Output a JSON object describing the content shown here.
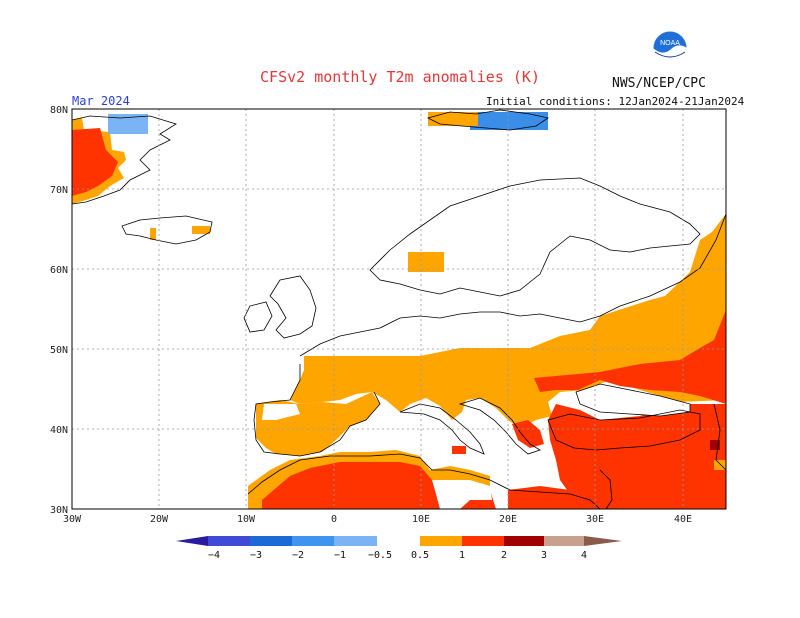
{
  "header": {
    "title": "CFSv2 monthly T2m anomalies (K)",
    "agency": "NWS/NCEP/CPC",
    "month": "Mar 2024",
    "initial_conditions": "Initial conditions: 12Jan2024-21Jan2024",
    "logo_text": "NOAA"
  },
  "map": {
    "lat_labels": [
      "80N",
      "70N",
      "60N",
      "50N",
      "40N",
      "30N"
    ],
    "lon_labels": [
      "30W",
      "20W",
      "10W",
      "0",
      "10E",
      "20E",
      "30E",
      "40E"
    ],
    "colors": {
      "ocean": "#ffffff",
      "coast": "#000000",
      "light_orange": "#ffa500",
      "orange_red": "#ff3300",
      "dark_red": "#a00000",
      "light_blue": "#7ab4f5",
      "mid_blue": "#3a8ee8"
    }
  },
  "legend": {
    "labels": [
      "−4",
      "−3",
      "−2",
      "−1",
      "−0.5",
      "0.5",
      "1",
      "2",
      "3",
      "4"
    ],
    "colors": [
      "#2a1b9e",
      "#3f4ad6",
      "#1b6ad6",
      "#3f95ee",
      "#7ab4f5",
      "#ffffff",
      "#ffa500",
      "#ff3300",
      "#a00000",
      "#c8a090",
      "#8a5a4a"
    ]
  }
}
